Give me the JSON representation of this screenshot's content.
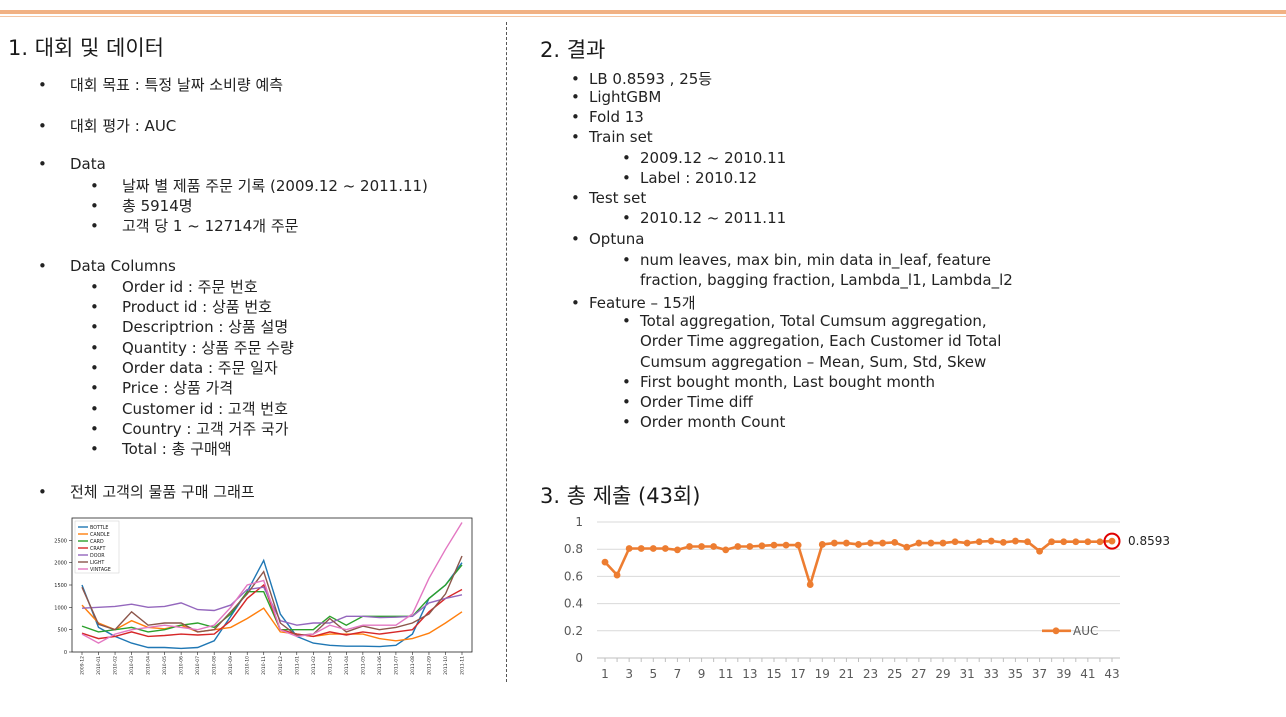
{
  "left": {
    "title": "1. 대회 및 데이터",
    "goal": "대회 목표 : 특정 날짜 소비량 예측",
    "metric": "대회 평가 : AUC",
    "data_label": "Data",
    "data_items": [
      "날짜 별 제품 주문 기록 (2009.12 ~ 2011.11)",
      "총 5914명",
      "고객 당 1 ~ 12714개 주문"
    ],
    "columns_label": "Data Columns",
    "columns": [
      "Order id : 주문 번호",
      "Product id : 상품 번호",
      "Descriptrion : 상품 설명",
      "Quantity : 상품 주문 수량",
      "Order data : 주문 일자",
      "Price : 상품 가격",
      "Customer id : 고객 번호",
      "Country : 고객 거주 국가",
      "Total : 총 구매액"
    ],
    "graph_label": "전체 고객의 물품 구매 그래프"
  },
  "right": {
    "title": "2. 결과",
    "lb": "LB 0.8593 , 25등",
    "model": "LightGBM",
    "fold": "Fold 13",
    "train_label": "Train set",
    "train_items": [
      "2009.12 ~ 2010.11",
      "Label : 2010.12"
    ],
    "test_label": "Test set",
    "test_items": [
      "2010.12 ~ 2011.11"
    ],
    "optuna_label": "Optuna",
    "optuna_items": [
      "num leaves, max bin, min data in_leaf, feature",
      "fraction, bagging fraction, Lambda_l1, Lambda_l2"
    ],
    "feature_label": "Feature – 15개",
    "feature_items": [
      "Total aggregation, Total Cumsum aggregation,",
      "Order Time aggregation, Each Customer id Total",
      "Cumsum aggregation – Mean, Sum, Std, Skew",
      "First bought month, Last bought month",
      "Order Time diff",
      "Order month Count"
    ],
    "submit_title": "3. 총 제출 (43회)"
  },
  "colors": {
    "auc": "#ed7d31",
    "highlight": "#e00000",
    "rule": "#f1b183"
  },
  "chart_data": [
    {
      "type": "line",
      "title": "",
      "xlabel": "",
      "ylabel": "",
      "categories": [
        "2009-12",
        "2010-01",
        "2010-02",
        "2010-03",
        "2010-04",
        "2010-05",
        "2010-06",
        "2010-07",
        "2010-08",
        "2010-09",
        "2010-10",
        "2010-11",
        "2010-12",
        "2011-01",
        "2011-02",
        "2011-03",
        "2011-04",
        "2011-05",
        "2011-06",
        "2011-07",
        "2011-08",
        "2011-09",
        "2011-10",
        "2011-11"
      ],
      "ylim": [
        0,
        3000
      ],
      "yticks": [
        0,
        500,
        1000,
        1500,
        2000,
        2500
      ],
      "legend_position": "top-left",
      "series": [
        {
          "name": "BOTTLE",
          "color": "#1f77b4",
          "values": [
            1500,
            550,
            350,
            200,
            100,
            100,
            80,
            100,
            250,
            800,
            1350,
            2050,
            850,
            350,
            200,
            150,
            130,
            130,
            120,
            150,
            400,
            1200,
            1500,
            2000
          ]
        },
        {
          "name": "CANDLE",
          "color": "#ff7f0e",
          "values": [
            1050,
            650,
            500,
            700,
            550,
            520,
            600,
            450,
            500,
            550,
            750,
            980,
            450,
            400,
            350,
            400,
            400,
            400,
            300,
            250,
            300,
            420,
            650,
            900
          ]
        },
        {
          "name": "CARD",
          "color": "#2ca02c",
          "values": [
            580,
            450,
            500,
            550,
            450,
            500,
            600,
            650,
            550,
            850,
            1350,
            1350,
            500,
            500,
            500,
            800,
            600,
            800,
            800,
            800,
            800,
            1200,
            1500,
            1950
          ]
        },
        {
          "name": "CRAFT",
          "color": "#d62728",
          "values": [
            420,
            300,
            350,
            450,
            350,
            370,
            400,
            380,
            400,
            700,
            1200,
            1500,
            500,
            400,
            350,
            450,
            380,
            450,
            400,
            450,
            500,
            900,
            1200,
            1400
          ]
        },
        {
          "name": "DOOR",
          "color": "#9467bd",
          "values": [
            980,
            1000,
            1020,
            1070,
            1000,
            1020,
            1100,
            950,
            930,
            1050,
            1400,
            1450,
            700,
            600,
            650,
            650,
            800,
            800,
            770,
            780,
            800,
            1100,
            1200,
            1280
          ]
        },
        {
          "name": "LIGHT",
          "color": "#8c564b",
          "values": [
            1450,
            620,
            500,
            900,
            600,
            650,
            650,
            450,
            500,
            900,
            1300,
            1800,
            650,
            370,
            400,
            750,
            450,
            580,
            500,
            550,
            650,
            850,
            1300,
            2150
          ]
        },
        {
          "name": "VINTAGE",
          "color": "#e377c2",
          "values": [
            400,
            200,
            400,
            500,
            550,
            600,
            550,
            500,
            600,
            1000,
            1500,
            1600,
            500,
            350,
            400,
            600,
            500,
            600,
            600,
            600,
            850,
            1650,
            2300,
            2900
          ]
        }
      ]
    },
    {
      "type": "line",
      "title": "",
      "xlabel": "",
      "ylabel": "",
      "ylim": [
        0,
        1
      ],
      "yticks": [
        "0",
        "0.2",
        "0.4",
        "0.6",
        "0.8",
        "1"
      ],
      "xticks": [
        "1",
        "3",
        "5",
        "7",
        "9",
        "11",
        "13",
        "15",
        "17",
        "19",
        "21",
        "23",
        "25",
        "27",
        "29",
        "31",
        "33",
        "35",
        "37",
        "39",
        "41",
        "43"
      ],
      "legend_position": "bottom-right",
      "series": [
        {
          "name": "AUC",
          "values": [
            0.705,
            0.61,
            0.805,
            0.805,
            0.805,
            0.805,
            0.795,
            0.82,
            0.82,
            0.82,
            0.795,
            0.82,
            0.82,
            0.825,
            0.83,
            0.83,
            0.83,
            0.54,
            0.835,
            0.845,
            0.845,
            0.835,
            0.845,
            0.845,
            0.85,
            0.815,
            0.845,
            0.845,
            0.845,
            0.855,
            0.845,
            0.855,
            0.86,
            0.85,
            0.86,
            0.855,
            0.785,
            0.855,
            0.855,
            0.855,
            0.855,
            0.855,
            0.8593
          ]
        }
      ],
      "highlight_label": "0.8593"
    }
  ]
}
